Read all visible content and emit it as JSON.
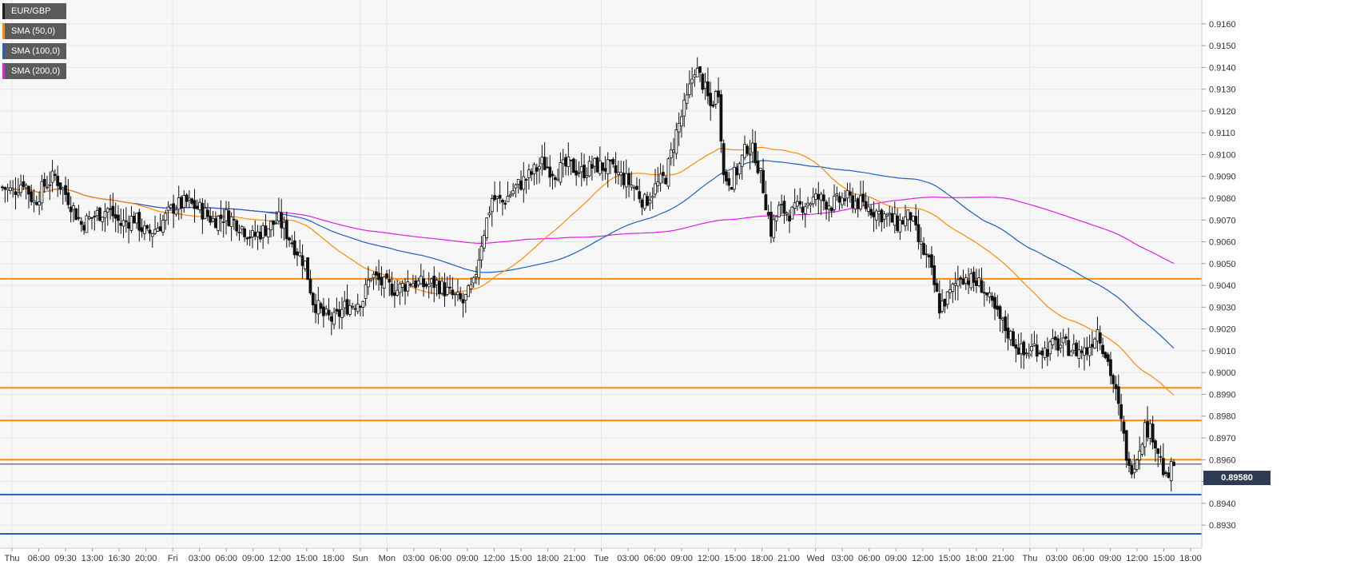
{
  "chart_data": {
    "type": "candlestick",
    "symbol": "EUR/GBP",
    "legend": [
      {
        "label": "EUR/GBP",
        "color": "#1a1a1a"
      },
      {
        "label": "SMA (50,0)",
        "color": "#ff8c00"
      },
      {
        "label": "SMA (100,0)",
        "color": "#1f5fbf"
      },
      {
        "label": "SMA (200,0)",
        "color": "#e020e0"
      }
    ],
    "ylim": [
      0.8926,
      0.9168
    ],
    "y_ticks": [
      "0.9160",
      "0.9150",
      "0.9140",
      "0.9130",
      "0.9120",
      "0.9110",
      "0.9100",
      "0.9090",
      "0.9080",
      "0.9070",
      "0.9060",
      "0.9050",
      "0.9040",
      "0.9030",
      "0.9020",
      "0.9010",
      "0.9000",
      "0.8990",
      "0.8980",
      "0.8970",
      "0.8960",
      "0.8950",
      "0.8940",
      "0.8930"
    ],
    "x_ticks": [
      "Thu",
      "06:00",
      "09:30",
      "13:00",
      "16:30",
      "20:00",
      "Fri",
      "03:00",
      "06:00",
      "09:00",
      "12:00",
      "15:00",
      "18:00",
      "Sun",
      "Mon",
      "03:00",
      "06:00",
      "09:00",
      "12:00",
      "15:00",
      "18:00",
      "21:00",
      "Tue",
      "03:00",
      "06:00",
      "09:00",
      "12:00",
      "15:00",
      "18:00",
      "21:00",
      "Wed",
      "03:00",
      "06:00",
      "09:00",
      "12:00",
      "15:00",
      "18:00",
      "21:00",
      "Thu",
      "03:00",
      "06:00",
      "09:00",
      "12:00",
      "15:00",
      "18:00"
    ],
    "current_price": "0.89580",
    "current_price_value": 0.8958,
    "horizontal_levels": [
      {
        "value": 0.9043,
        "color": "#ff8c00"
      },
      {
        "value": 0.8993,
        "color": "#ff8c00"
      },
      {
        "value": 0.8978,
        "color": "#ff8c00"
      },
      {
        "value": 0.896,
        "color": "#ff8c00"
      },
      {
        "value": 0.8944,
        "color": "#1f5fbf"
      },
      {
        "value": 0.8926,
        "color": "#1f5fbf"
      }
    ],
    "price_path": [
      [
        0,
        0.9085
      ],
      [
        4,
        0.9083
      ],
      [
        8,
        0.9088
      ],
      [
        12,
        0.9078
      ],
      [
        16,
        0.9086
      ],
      [
        20,
        0.909
      ],
      [
        25,
        0.908
      ],
      [
        30,
        0.9068
      ],
      [
        35,
        0.9072
      ],
      [
        40,
        0.9075
      ],
      [
        45,
        0.9068
      ],
      [
        50,
        0.9071
      ],
      [
        55,
        0.9063
      ],
      [
        60,
        0.9068
      ],
      [
        65,
        0.9076
      ],
      [
        70,
        0.9078
      ],
      [
        75,
        0.9075
      ],
      [
        80,
        0.907
      ],
      [
        85,
        0.9072
      ],
      [
        90,
        0.9068
      ],
      [
        95,
        0.9062
      ],
      [
        100,
        0.9066
      ],
      [
        105,
        0.907
      ],
      [
        110,
        0.906
      ],
      [
        115,
        0.905
      ],
      [
        118,
        0.9033
      ],
      [
        122,
        0.9026
      ],
      [
        126,
        0.9024
      ],
      [
        130,
        0.903
      ],
      [
        134,
        0.9032
      ],
      [
        137,
        0.9034
      ],
      [
        140,
        0.9045
      ],
      [
        145,
        0.904
      ],
      [
        150,
        0.9038
      ],
      [
        155,
        0.9042
      ],
      [
        160,
        0.904
      ],
      [
        165,
        0.9041
      ],
      [
        170,
        0.9036
      ],
      [
        175,
        0.9032
      ],
      [
        179,
        0.904
      ],
      [
        182,
        0.906
      ],
      [
        186,
        0.908
      ],
      [
        190,
        0.9078
      ],
      [
        195,
        0.9085
      ],
      [
        200,
        0.909
      ],
      [
        205,
        0.9096
      ],
      [
        210,
        0.9092
      ],
      [
        215,
        0.9095
      ],
      [
        220,
        0.9092
      ],
      [
        225,
        0.9095
      ],
      [
        230,
        0.9094
      ],
      [
        235,
        0.909
      ],
      [
        240,
        0.9085
      ],
      [
        244,
        0.9078
      ],
      [
        248,
        0.9085
      ],
      [
        252,
        0.909
      ],
      [
        256,
        0.911
      ],
      [
        260,
        0.9125
      ],
      [
        263,
        0.914
      ],
      [
        266,
        0.9133
      ],
      [
        269,
        0.9122
      ],
      [
        272,
        0.913
      ],
      [
        274,
        0.909
      ],
      [
        277,
        0.9088
      ],
      [
        280,
        0.9095
      ],
      [
        283,
        0.9104
      ],
      [
        286,
        0.91
      ],
      [
        289,
        0.9085
      ],
      [
        292,
        0.9065
      ],
      [
        295,
        0.9075
      ],
      [
        300,
        0.9073
      ],
      [
        305,
        0.9078
      ],
      [
        310,
        0.908
      ],
      [
        315,
        0.9077
      ],
      [
        320,
        0.908
      ],
      [
        325,
        0.9078
      ],
      [
        330,
        0.9075
      ],
      [
        335,
        0.9072
      ],
      [
        340,
        0.9068
      ],
      [
        345,
        0.9072
      ],
      [
        348,
        0.906
      ],
      [
        352,
        0.905
      ],
      [
        356,
        0.903
      ],
      [
        360,
        0.9036
      ],
      [
        364,
        0.9045
      ],
      [
        368,
        0.9042
      ],
      [
        372,
        0.904
      ],
      [
        376,
        0.903
      ],
      [
        380,
        0.9022
      ],
      [
        384,
        0.9015
      ],
      [
        388,
        0.9008
      ],
      [
        392,
        0.9012
      ],
      [
        396,
        0.901
      ],
      [
        400,
        0.9013
      ],
      [
        404,
        0.9012
      ],
      [
        408,
        0.901
      ],
      [
        412,
        0.901
      ],
      [
        416,
        0.902
      ],
      [
        420,
        0.9005
      ],
      [
        423,
        0.899
      ],
      [
        426,
        0.897
      ],
      [
        428,
        0.8955
      ],
      [
        431,
        0.8962
      ],
      [
        434,
        0.8975
      ],
      [
        437,
        0.8972
      ],
      [
        440,
        0.896
      ],
      [
        442,
        0.895
      ],
      [
        445,
        0.8958
      ]
    ]
  }
}
